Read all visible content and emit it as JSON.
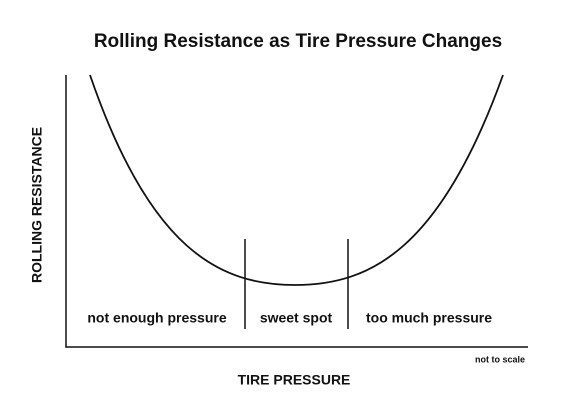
{
  "title": "Rolling Resistance as Tire Pressure Changes",
  "axes": {
    "y_label": "ROLLING RESISTANCE",
    "x_label": "TIRE PRESSURE"
  },
  "regions": [
    "not enough pressure",
    "sweet spot",
    "too much pressure"
  ],
  "note": "not to scale"
}
